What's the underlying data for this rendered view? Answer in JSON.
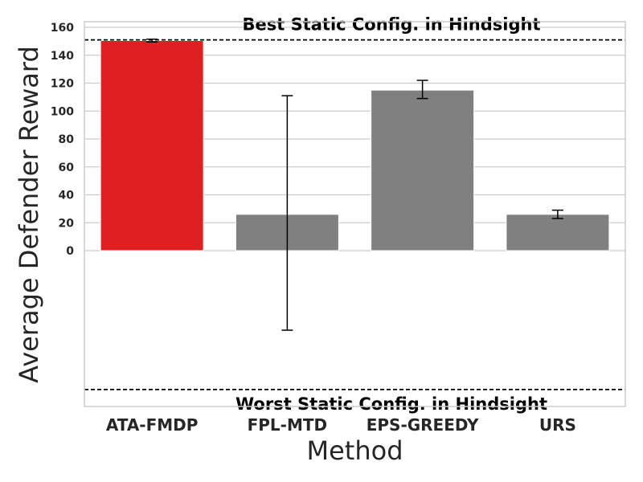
{
  "chart_data": {
    "type": "bar",
    "categories": [
      "ATA-FMDP",
      "FPL-MTD",
      "EPS-GREEDY",
      "URS"
    ],
    "values": [
      150.5,
      26,
      115,
      26
    ],
    "error_low": [
      149.5,
      -57,
      109,
      23
    ],
    "error_high": [
      151.5,
      111,
      122,
      29
    ],
    "bar_colors": [
      "#e02020",
      "#808080",
      "#808080",
      "#808080"
    ],
    "xlabel": "Method",
    "ylabel": "Average Defender Reward",
    "yticks": [
      0,
      20,
      40,
      60,
      80,
      100,
      120,
      140,
      160
    ],
    "ytick_labels": [
      "0",
      "20",
      "40",
      "60",
      "80",
      "100",
      "120",
      "140",
      "160"
    ],
    "ylim": [
      -112,
      164
    ],
    "grid": true,
    "reference_lines": [
      {
        "label": "Best Static Config. in Hindsight",
        "value": 151,
        "style": "dashed"
      },
      {
        "label": "Worst Static Config. in Hindsight",
        "value": -99.5,
        "style": "dashed"
      }
    ]
  }
}
